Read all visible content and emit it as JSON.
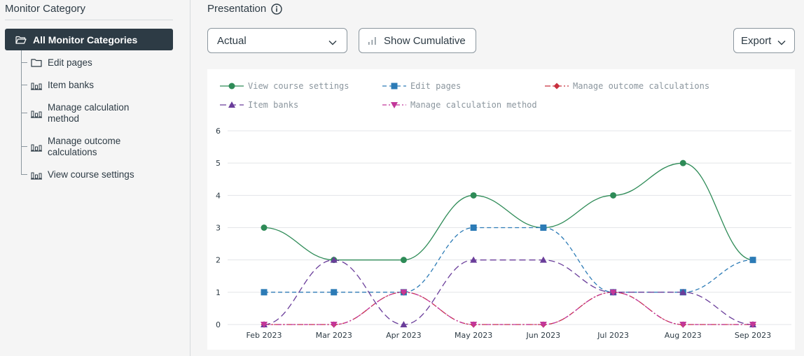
{
  "sidebar": {
    "title": "Monitor Category",
    "root_label": "All Monitor Categories",
    "items": [
      {
        "label": "Edit pages",
        "icon": "folder-icon"
      },
      {
        "label": "Item banks",
        "icon": "bar-chart-icon"
      },
      {
        "label": "Manage calculation method",
        "icon": "bar-chart-icon"
      },
      {
        "label": "Manage outcome calculations",
        "icon": "bar-chart-icon"
      },
      {
        "label": "View course settings",
        "icon": "bar-chart-icon"
      }
    ]
  },
  "main": {
    "presentation_label": "Presentation",
    "view_select_value": "Actual",
    "cumulative_button": "Show Cumulative",
    "export_button": "Export"
  },
  "chart_data": {
    "type": "line",
    "categories": [
      "Feb 2023",
      "Mar 2023",
      "Apr 2023",
      "May 2023",
      "Jun 2023",
      "Jul 2023",
      "Aug 2023",
      "Sep 2023"
    ],
    "ylim": [
      0,
      6
    ],
    "yticks": [
      "0",
      "1",
      "2",
      "3",
      "4",
      "5",
      "6"
    ],
    "grid": true,
    "legend_position": "top-left",
    "series": [
      {
        "name": "View course settings",
        "color": "#2e8b57",
        "marker": "circle",
        "dash": "solid",
        "values": [
          3,
          2,
          2,
          4,
          3,
          4,
          5,
          2
        ]
      },
      {
        "name": "Edit pages",
        "color": "#2c7bb6",
        "marker": "square",
        "dash": "dashed",
        "values": [
          1,
          1,
          1,
          3,
          3,
          1,
          1,
          2
        ]
      },
      {
        "name": "Manage outcome calculations",
        "color": "#c8303e",
        "marker": "diamond",
        "dash": "dashdot",
        "values": [
          0,
          0,
          1,
          0,
          0,
          1,
          0,
          0
        ]
      },
      {
        "name": "Item banks",
        "color": "#6a3d9a",
        "marker": "triangle-up",
        "dash": "longdash",
        "values": [
          0,
          2,
          0,
          2,
          2,
          1,
          1,
          0
        ]
      },
      {
        "name": "Manage calculation method",
        "color": "#c2379a",
        "marker": "triangle-down",
        "dash": "dashdotdot",
        "values": [
          0,
          0,
          1,
          0,
          0,
          1,
          0,
          0
        ]
      }
    ]
  }
}
